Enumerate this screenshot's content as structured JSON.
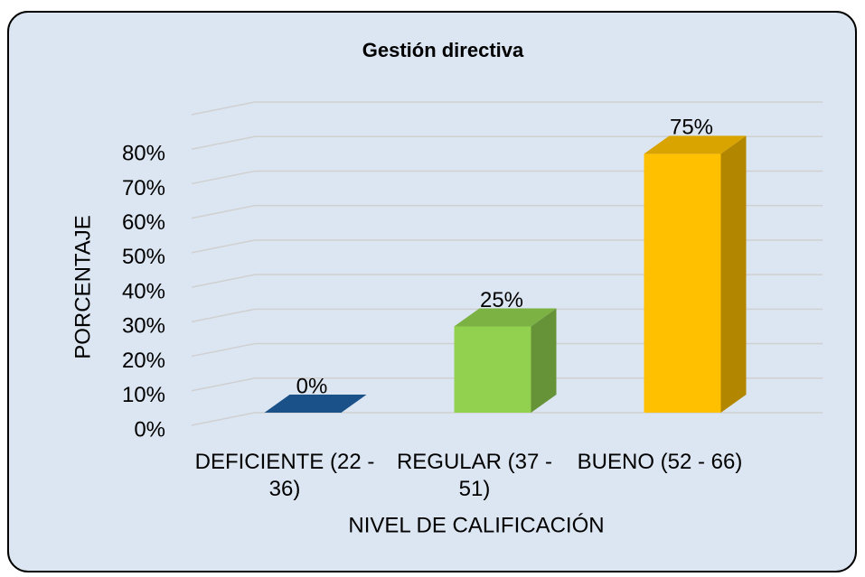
{
  "chart_data": {
    "type": "bar3d",
    "title": "Gestión directiva",
    "x_label": "NIVEL DE CALIFICACIÓN",
    "y_label": "PORCENTAJE",
    "categories": [
      "DEFICIENTE (22 - 36)",
      "REGULAR (37 - 51)",
      "BUENO (52 - 66)"
    ],
    "values": [
      0,
      25,
      75
    ],
    "value_labels": [
      "0%",
      "25%",
      "75%"
    ],
    "colors": [
      "#1f5fa0",
      "#92d050",
      "#ffc000"
    ],
    "ylim": [
      0,
      90
    ],
    "yticks": [
      {
        "value": 0,
        "label": "0%"
      },
      {
        "value": 10,
        "label": "10%"
      },
      {
        "value": 20,
        "label": "20%"
      },
      {
        "value": 30,
        "label": "30%"
      },
      {
        "value": 40,
        "label": "40%"
      },
      {
        "value": 50,
        "label": "50%"
      },
      {
        "value": 60,
        "label": "60%"
      },
      {
        "value": 70,
        "label": "70%"
      },
      {
        "value": 80,
        "label": "80%"
      }
    ],
    "grid": true
  }
}
